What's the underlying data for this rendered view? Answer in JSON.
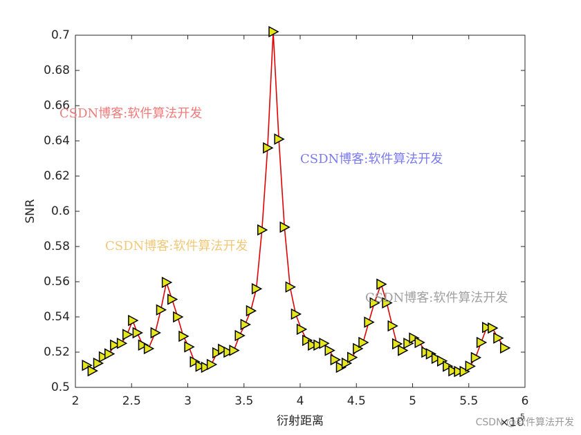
{
  "chart_data": {
    "type": "line",
    "xlabel": "衍射距离",
    "ylabel": "SNR",
    "x_multiplier": {
      "base": "×10",
      "exponent": "5"
    },
    "x": [
      2.1,
      2.15,
      2.2,
      2.25,
      2.3,
      2.35,
      2.41,
      2.46,
      2.51,
      2.55,
      2.6,
      2.65,
      2.71,
      2.76,
      2.81,
      2.86,
      2.91,
      2.96,
      3.01,
      3.06,
      3.11,
      3.16,
      3.21,
      3.26,
      3.31,
      3.36,
      3.41,
      3.46,
      3.51,
      3.56,
      3.61,
      3.66,
      3.71,
      3.76,
      3.81,
      3.86,
      3.91,
      3.96,
      4.01,
      4.06,
      4.11,
      4.16,
      4.21,
      4.26,
      4.31,
      4.36,
      4.41,
      4.46,
      4.51,
      4.56,
      4.61,
      4.66,
      4.72,
      4.77,
      4.82,
      4.86,
      4.91,
      4.96,
      5.01,
      5.06,
      5.12,
      5.16,
      5.21,
      5.26,
      5.31,
      5.36,
      5.41,
      5.46,
      5.51,
      5.56,
      5.61,
      5.66,
      5.71,
      5.76,
      5.82
    ],
    "series": [
      {
        "color": "#e00000",
        "marker_color": "#e6e61e",
        "values": [
          0.5125,
          0.5094,
          0.5137,
          0.5173,
          0.519,
          0.524,
          0.525,
          0.53,
          0.538,
          0.531,
          0.524,
          0.522,
          0.531,
          0.544,
          0.5596,
          0.55,
          0.54,
          0.529,
          0.523,
          0.5145,
          0.512,
          0.5114,
          0.513,
          0.5196,
          0.5216,
          0.52,
          0.521,
          0.5294,
          0.5357,
          0.5435,
          0.556,
          0.5894,
          0.636,
          0.702,
          0.641,
          0.591,
          0.557,
          0.5416,
          0.533,
          0.5267,
          0.524,
          0.524,
          0.525,
          0.521,
          0.5157,
          0.5114,
          0.5137,
          0.517,
          0.522,
          0.5255,
          0.537,
          0.548,
          0.5586,
          0.548,
          0.5349,
          0.5247,
          0.521,
          0.525,
          0.528,
          0.5255,
          0.52,
          0.519,
          0.5165,
          0.515,
          0.512,
          0.5094,
          0.509,
          0.509,
          0.512,
          0.5169,
          0.5255,
          0.534,
          0.5337,
          0.528,
          0.5224
        ]
      }
    ],
    "xlim": [
      2,
      6
    ],
    "xticks": [
      2,
      2.5,
      3,
      3.5,
      4,
      4.5,
      5,
      5.5,
      6
    ],
    "ylim": [
      0.5,
      0.7
    ],
    "yticks": [
      0.5,
      0.52,
      0.54,
      0.56,
      0.58,
      0.6,
      0.62,
      0.64,
      0.66,
      0.68,
      0.7
    ],
    "annotations": [
      {
        "text": "CSDN博客:软件算法开发",
        "color": "#f07a7a"
      },
      {
        "text": "CSDN博客:软件算法开发",
        "color": "#7a7af0"
      },
      {
        "text": "CSDN博客:软件算法开发",
        "color": "#f0c878"
      },
      {
        "text": "CSDN博客:软件算法开发",
        "color": "#a0a0a0"
      }
    ],
    "footer": "CSDN @软件算法开发"
  }
}
